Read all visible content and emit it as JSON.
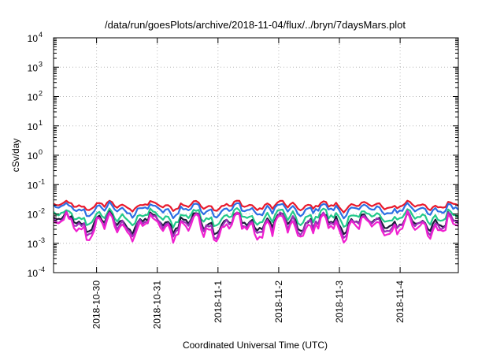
{
  "chart_data": {
    "type": "line",
    "title": "/data/run/goesPlots/archive/2018-11-04/flux/../bryn/7daysMars.plot",
    "xlabel": "Coordinated Universal Time (UTC)",
    "ylabel": "cSv/day",
    "xlim": [
      "2018-10-29 07:00",
      "2018-11-04 23:00"
    ],
    "x_ticks": [
      "2018-10-30",
      "2018-10-31",
      "2018-11-1",
      "2018-11-2",
      "2018-11-3",
      "2018-11-4"
    ],
    "yscale": "log",
    "ylim": [
      0.0001,
      10000
    ],
    "y_ticks": [
      {
        "base": "10",
        "exp": "-4"
      },
      {
        "base": "10",
        "exp": "-3"
      },
      {
        "base": "10",
        "exp": "-2"
      },
      {
        "base": "10",
        "exp": "-1"
      },
      {
        "base": "10",
        "exp": "0"
      },
      {
        "base": "10",
        "exp": "1"
      },
      {
        "base": "10",
        "exp": "2"
      },
      {
        "base": "10",
        "exp": "3"
      },
      {
        "base": "10",
        "exp": "4"
      }
    ],
    "grid": true,
    "series": [
      {
        "color": "#e8192c",
        "level": 0.019
      },
      {
        "color": "#2c6fe3",
        "level": 0.014
      },
      {
        "color": "#22c98a",
        "level": 0.0078
      },
      {
        "color": "#1b1b3a",
        "level": 0.0052
      },
      {
        "color": "#9b30b8",
        "level": 0.0045
      },
      {
        "color": "#f020d0",
        "level": 0.0036
      }
    ]
  }
}
